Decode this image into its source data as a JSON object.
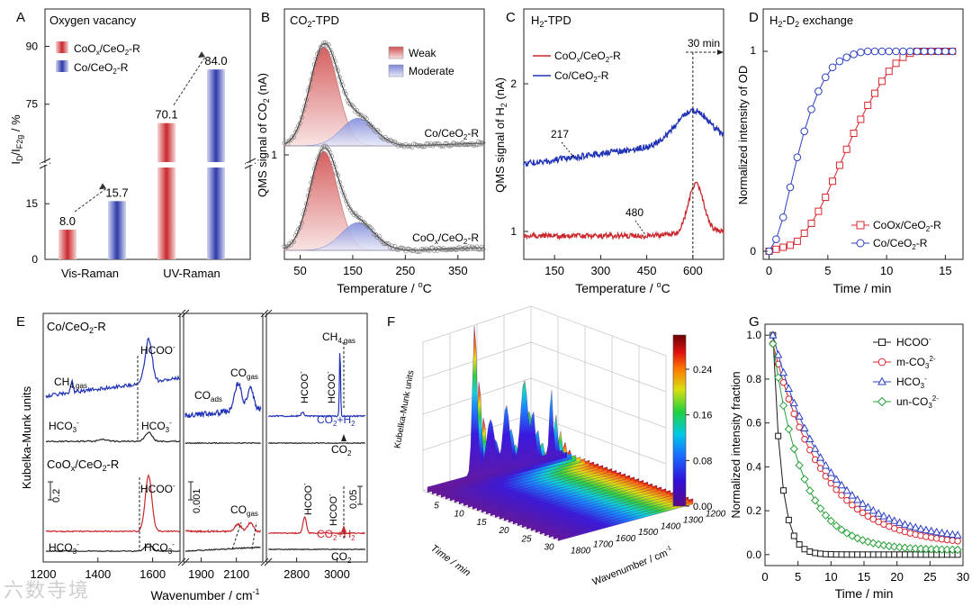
{
  "panels": {
    "A": {
      "letter": "A",
      "type": "bar",
      "title": "Oxygen vacancy",
      "ylabel_main": "I",
      "ylabel_sub_D": "D",
      "ylabel_slash": "/I",
      "ylabel_sub_F": "F2g",
      "ylabel_unit": " / %",
      "categories": [
        "Vis-Raman",
        "UV-Raman"
      ],
      "series": [
        {
          "name": "CoO",
          "name_sub": "x",
          "name_rest": "/CeO",
          "name_sub2": "2",
          "name_tail": "-R",
          "values": [
            8.0,
            70.1
          ],
          "color": "#c9282d"
        },
        {
          "name": "Co/CeO",
          "name_sub": "2",
          "name_rest": "-R",
          "values": [
            15.7,
            84.0
          ],
          "color": "#2f3aa8"
        }
      ],
      "value_labels": [
        "8.0",
        "15.7",
        "70.1",
        "84.0"
      ],
      "yticks_low": [
        "0",
        "15"
      ],
      "yticks_high": [
        "75",
        "90"
      ],
      "ylim_low": [
        0,
        25
      ],
      "ylim_high": [
        60,
        95
      ]
    },
    "B": {
      "letter": "B",
      "type": "area",
      "title_main": "CO",
      "title_sub": "2",
      "title_rest": "-TPD",
      "ylabel_pre": "QMS signal of CO",
      "ylabel_sub": "2",
      "ylabel_post": " (nA)",
      "xlabel_pre": "Temperature / ",
      "xlabel_sup": "o",
      "xlabel_post": "C",
      "xticks": [
        "50",
        "150",
        "250",
        "350"
      ],
      "xlim": [
        20,
        400
      ],
      "ytick": "1",
      "legend": [
        "Weak",
        "Moderate"
      ],
      "upper_label_pre": "Co/CeO",
      "upper_label_sub": "2",
      "upper_label_post": "-R",
      "lower_label_pre": "CoO",
      "lower_label_sub": "x",
      "lower_label_mid": "/CeO",
      "lower_label_sub2": "2",
      "lower_label_post": "-R",
      "weak_peak_center": 95,
      "moderate_peak_center": 160
    },
    "C": {
      "letter": "C",
      "type": "line",
      "title_main": "H",
      "title_sub": "2",
      "title_rest": "-TPD",
      "ylabel_pre": "QMS signal of H",
      "ylabel_sub": "2",
      "ylabel_post": " (nA)",
      "xlabel_pre": "Temperature / ",
      "xlabel_sup": "o",
      "xlabel_post": "C",
      "xticks": [
        "150",
        "300",
        "450",
        "600"
      ],
      "xlim": [
        50,
        700
      ],
      "yticks": [
        "1",
        "2"
      ],
      "legend": [
        {
          "pre": "CoO",
          "sub": "x",
          "mid": "/CeO",
          "sub2": "2",
          "post": "-R",
          "color": "#c9282d"
        },
        {
          "pre": "Co/CeO",
          "sub": "",
          "mid": "",
          "sub2": "2",
          "post": "-R",
          "color": "#1f32b4"
        }
      ],
      "annotation_hold": "30 min",
      "annotation_217": "217",
      "annotation_480": "480",
      "peak_line": 600
    },
    "D": {
      "letter": "D",
      "type": "line",
      "title_main": "H",
      "title_sub1": "2",
      "title_mid": "-D",
      "title_sub2": "2",
      "title_rest": " exchange",
      "ylabel": "Normalized intensity of OD",
      "xlabel": "Time / min",
      "xticks": [
        "0",
        "5",
        "10",
        "15"
      ],
      "xlim": [
        -0.5,
        16.5
      ],
      "yticks": [
        "0",
        "1"
      ],
      "series": [
        {
          "pre": "CoOx",
          "mid": "/CeO",
          "sub2": "2",
          "post": "-R",
          "color": "#d8272d",
          "marker": "square",
          "x": [
            0,
            0.6,
            1.2,
            1.8,
            2.4,
            3.0,
            3.6,
            4.2,
            4.8,
            5.4,
            6.0,
            6.6,
            7.2,
            7.8,
            8.4,
            9.0,
            9.6,
            10.2,
            10.8,
            11.4,
            12.0,
            12.6,
            13.2,
            13.8,
            14.4,
            15.0,
            15.6
          ],
          "y": [
            0,
            0.01,
            0.02,
            0.03,
            0.05,
            0.09,
            0.14,
            0.2,
            0.27,
            0.35,
            0.43,
            0.51,
            0.59,
            0.66,
            0.73,
            0.79,
            0.85,
            0.9,
            0.94,
            0.97,
            0.99,
            1.0,
            1.0,
            1.0,
            1.0,
            1.0,
            1.0
          ]
        },
        {
          "pre": "Co/CeO",
          "mid": "",
          "sub2": "2",
          "post": "-R",
          "color": "#2b3fc2",
          "marker": "circle",
          "x": [
            0,
            0.6,
            1.2,
            1.8,
            2.4,
            3.0,
            3.6,
            4.2,
            4.8,
            5.4,
            6.0,
            6.6,
            7.2,
            7.8,
            8.4,
            9.0,
            9.6,
            10.2,
            10.8,
            11.4,
            12.0,
            12.6,
            13.2,
            13.8,
            14.4,
            15.0,
            15.6
          ],
          "y": [
            0,
            0.06,
            0.17,
            0.32,
            0.47,
            0.6,
            0.71,
            0.8,
            0.87,
            0.92,
            0.95,
            0.97,
            0.985,
            0.995,
            1.0,
            1.0,
            1.0,
            1.0,
            1.0,
            1.0,
            1.0,
            1.0,
            1.0,
            1.0,
            1.0,
            1.0,
            1.0
          ]
        }
      ]
    },
    "E": {
      "letter": "E",
      "type": "line",
      "ylabel": "Kubelka-Munk units",
      "xlabel_pre": "Wavenumber / cm",
      "xlabel_sup": "-1",
      "xticks_1": [
        "1200",
        "1400",
        "1600"
      ],
      "xticks_2": [
        "1900",
        "2100"
      ],
      "xticks_3": [
        "2800",
        "3000"
      ],
      "top_title_pre": "Co/CeO",
      "top_title_sub": "2",
      "top_title_post": "-R",
      "bottom_title_pre": "CoO",
      "bottom_title_sub": "x",
      "bottom_title_mid": "/CeO",
      "bottom_title_sub2": "2",
      "bottom_title_post": "-R",
      "labels": {
        "hcoo": "HCOO",
        "hcoo_sup": "-",
        "hco3": "HCO",
        "hco3_sub": "3",
        "hco3_sup": "-",
        "ch4": "CH",
        "ch4_sub": "4,gas",
        "co_ads": "CO",
        "co_ads_sub": "ads",
        "co_gas": "CO",
        "co_gas_sub": "gas",
        "co2h2_pre": "CO",
        "co2h2_sub": "2",
        "co2h2_post": "+H",
        "co2h2_sub2": "2",
        "co2_pre": "CO",
        "co2_sub": "2"
      },
      "scale_bars": [
        "0.2",
        "0.001",
        "0.05"
      ]
    },
    "F": {
      "letter": "F",
      "type": "heatmap",
      "zlabel": "Kubelka-Munk units",
      "time_label": "Time / min",
      "wn_label_pre": "Wavenumber / cm",
      "wn_label_sup": "-1",
      "time_ticks": [
        "5",
        "10",
        "15",
        "20",
        "25",
        "30"
      ],
      "wn_ticks": [
        "1200",
        "1300",
        "1400",
        "1500",
        "1600",
        "1700",
        "1800"
      ],
      "colorbar_ticks": [
        "0.00",
        "0.08",
        "0.16",
        "0.24"
      ],
      "colorbar_range": [
        0,
        0.3
      ]
    },
    "G": {
      "letter": "G",
      "type": "scatter",
      "ylabel": "Normalized intensity fraction",
      "xlabel": "Time / min",
      "xticks": [
        "0",
        "5",
        "10",
        "15",
        "20",
        "25",
        "30"
      ],
      "yticks": [
        "0.0",
        "0.2",
        "0.4",
        "0.6",
        "0.8",
        "1.0"
      ],
      "xlim": [
        0,
        30
      ],
      "ylim": [
        -0.05,
        1.05
      ],
      "series": [
        {
          "pre": "HCOO",
          "sup": "-",
          "sub": "",
          "color": "#1a1a1a",
          "marker": "square",
          "tau": 1.3,
          "offset": 0.0
        },
        {
          "pre": "m-CO",
          "sub": "3",
          "sup": "2-",
          "color": "#d8272d",
          "marker": "circle",
          "tau": 7.5,
          "offset": 0.04
        },
        {
          "pre": "HCO",
          "sub": "3",
          "sup": "-",
          "color": "#2b3fc2",
          "marker": "triangle",
          "tau": 8.0,
          "offset": 0.06
        },
        {
          "pre": "un-CO",
          "sub": "3",
          "sup": "2-",
          "color": "#27a03a",
          "marker": "diamond",
          "tau": 4.5,
          "offset": 0.02
        }
      ]
    }
  },
  "watermark": "六数寺境"
}
